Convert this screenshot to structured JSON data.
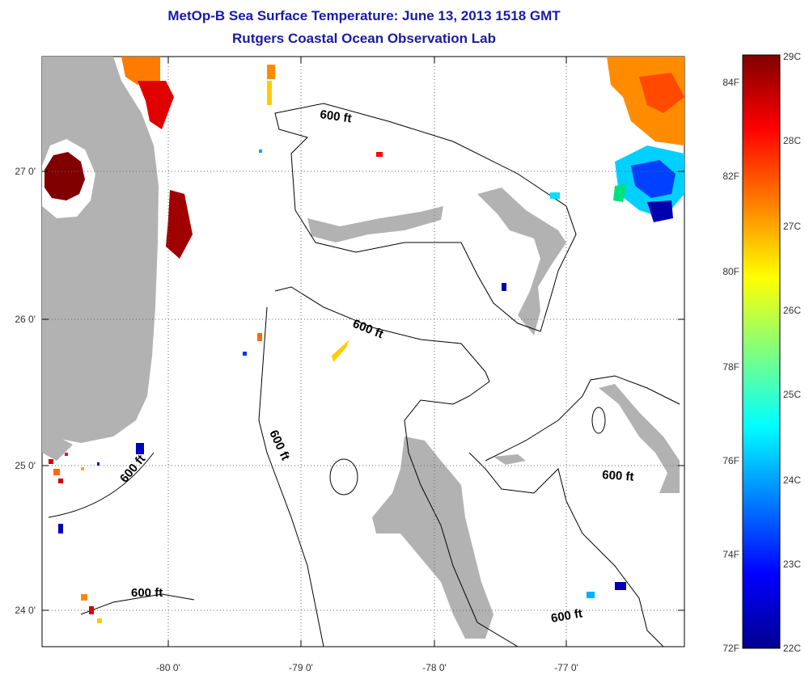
{
  "title": {
    "line1": "MetOp-B Sea Surface Temperature:  June 13, 2013 1518 GMT",
    "line2": "Rutgers Coastal Ocean Observation Lab"
  },
  "axes": {
    "x_ticks": [
      "-80 0'",
      "-79 0'",
      "-78 0'",
      "-77 0'"
    ],
    "y_ticks": [
      "27 0'",
      "26 0'",
      "25 0'",
      "24 0'"
    ]
  },
  "contour_label": "600 ft",
  "colorbar": {
    "celsius": [
      "29C",
      "28C",
      "27C",
      "26C",
      "25C",
      "24C",
      "23C",
      "22C"
    ],
    "fahrenheit": [
      "84F",
      "82F",
      "80F",
      "78F",
      "76F",
      "74F",
      "72F"
    ]
  },
  "colors": {
    "land": "#b2b2b2",
    "hot": "#800000",
    "warm": "#ff8c00",
    "cool": "#00c8ff",
    "cold": "#0000a0",
    "title": "#1a1aa6"
  }
}
